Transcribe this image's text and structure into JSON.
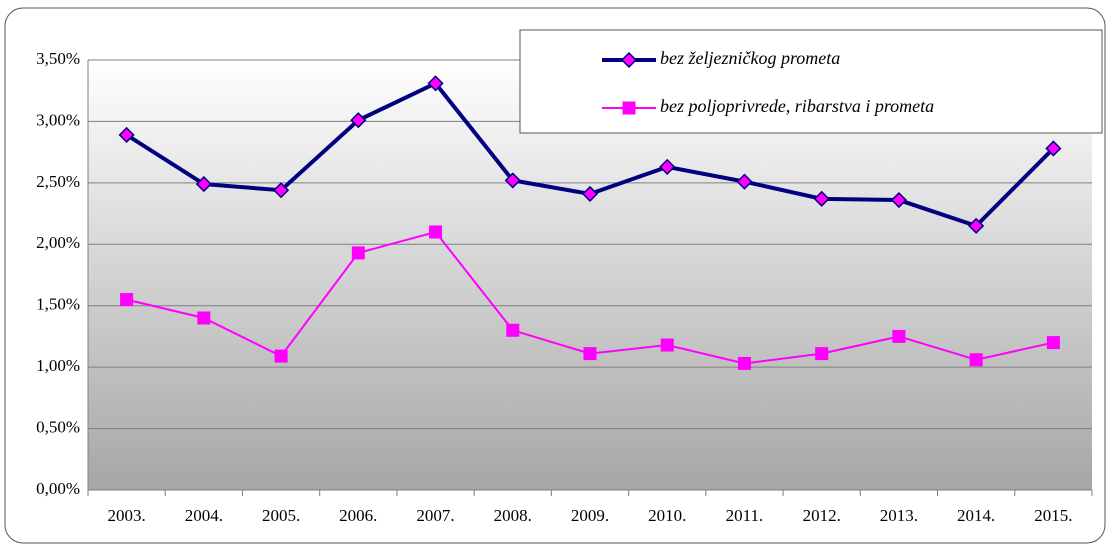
{
  "chart_data": {
    "type": "line",
    "categories": [
      "2003.",
      "2004.",
      "2005.",
      "2006.",
      "2007.",
      "2008.",
      "2009.",
      "2010.",
      "2011.",
      "2012.",
      "2013.",
      "2014.",
      "2015."
    ],
    "series": [
      {
        "name": "bez željezničkog prometa",
        "color": "#000080",
        "marker_color": "#ff00ff",
        "values": [
          2.89,
          2.49,
          2.44,
          3.01,
          3.31,
          2.52,
          2.41,
          2.63,
          2.51,
          2.37,
          2.36,
          2.15,
          2.78
        ]
      },
      {
        "name": "bez poljoprivrede, ribarstva i prometa",
        "color": "#ff00ff",
        "marker_color": "#ff00ff",
        "values": [
          1.55,
          1.4,
          1.09,
          1.93,
          2.1,
          1.3,
          1.11,
          1.18,
          1.03,
          1.11,
          1.25,
          1.06,
          1.2
        ]
      }
    ],
    "ylim": [
      0,
      3.5
    ],
    "yticks": [
      {
        "value": 0,
        "label": "0,00%"
      },
      {
        "value": 0.5,
        "label": "0,50%"
      },
      {
        "value": 1,
        "label": "1,00%"
      },
      {
        "value": 1.5,
        "label": "1,50%"
      },
      {
        "value": 2,
        "label": "2,00%"
      },
      {
        "value": 2.5,
        "label": "2,50%"
      },
      {
        "value": 3,
        "label": "3,00%"
      },
      {
        "value": 3.5,
        "label": "3,50%"
      }
    ],
    "grid": true
  }
}
